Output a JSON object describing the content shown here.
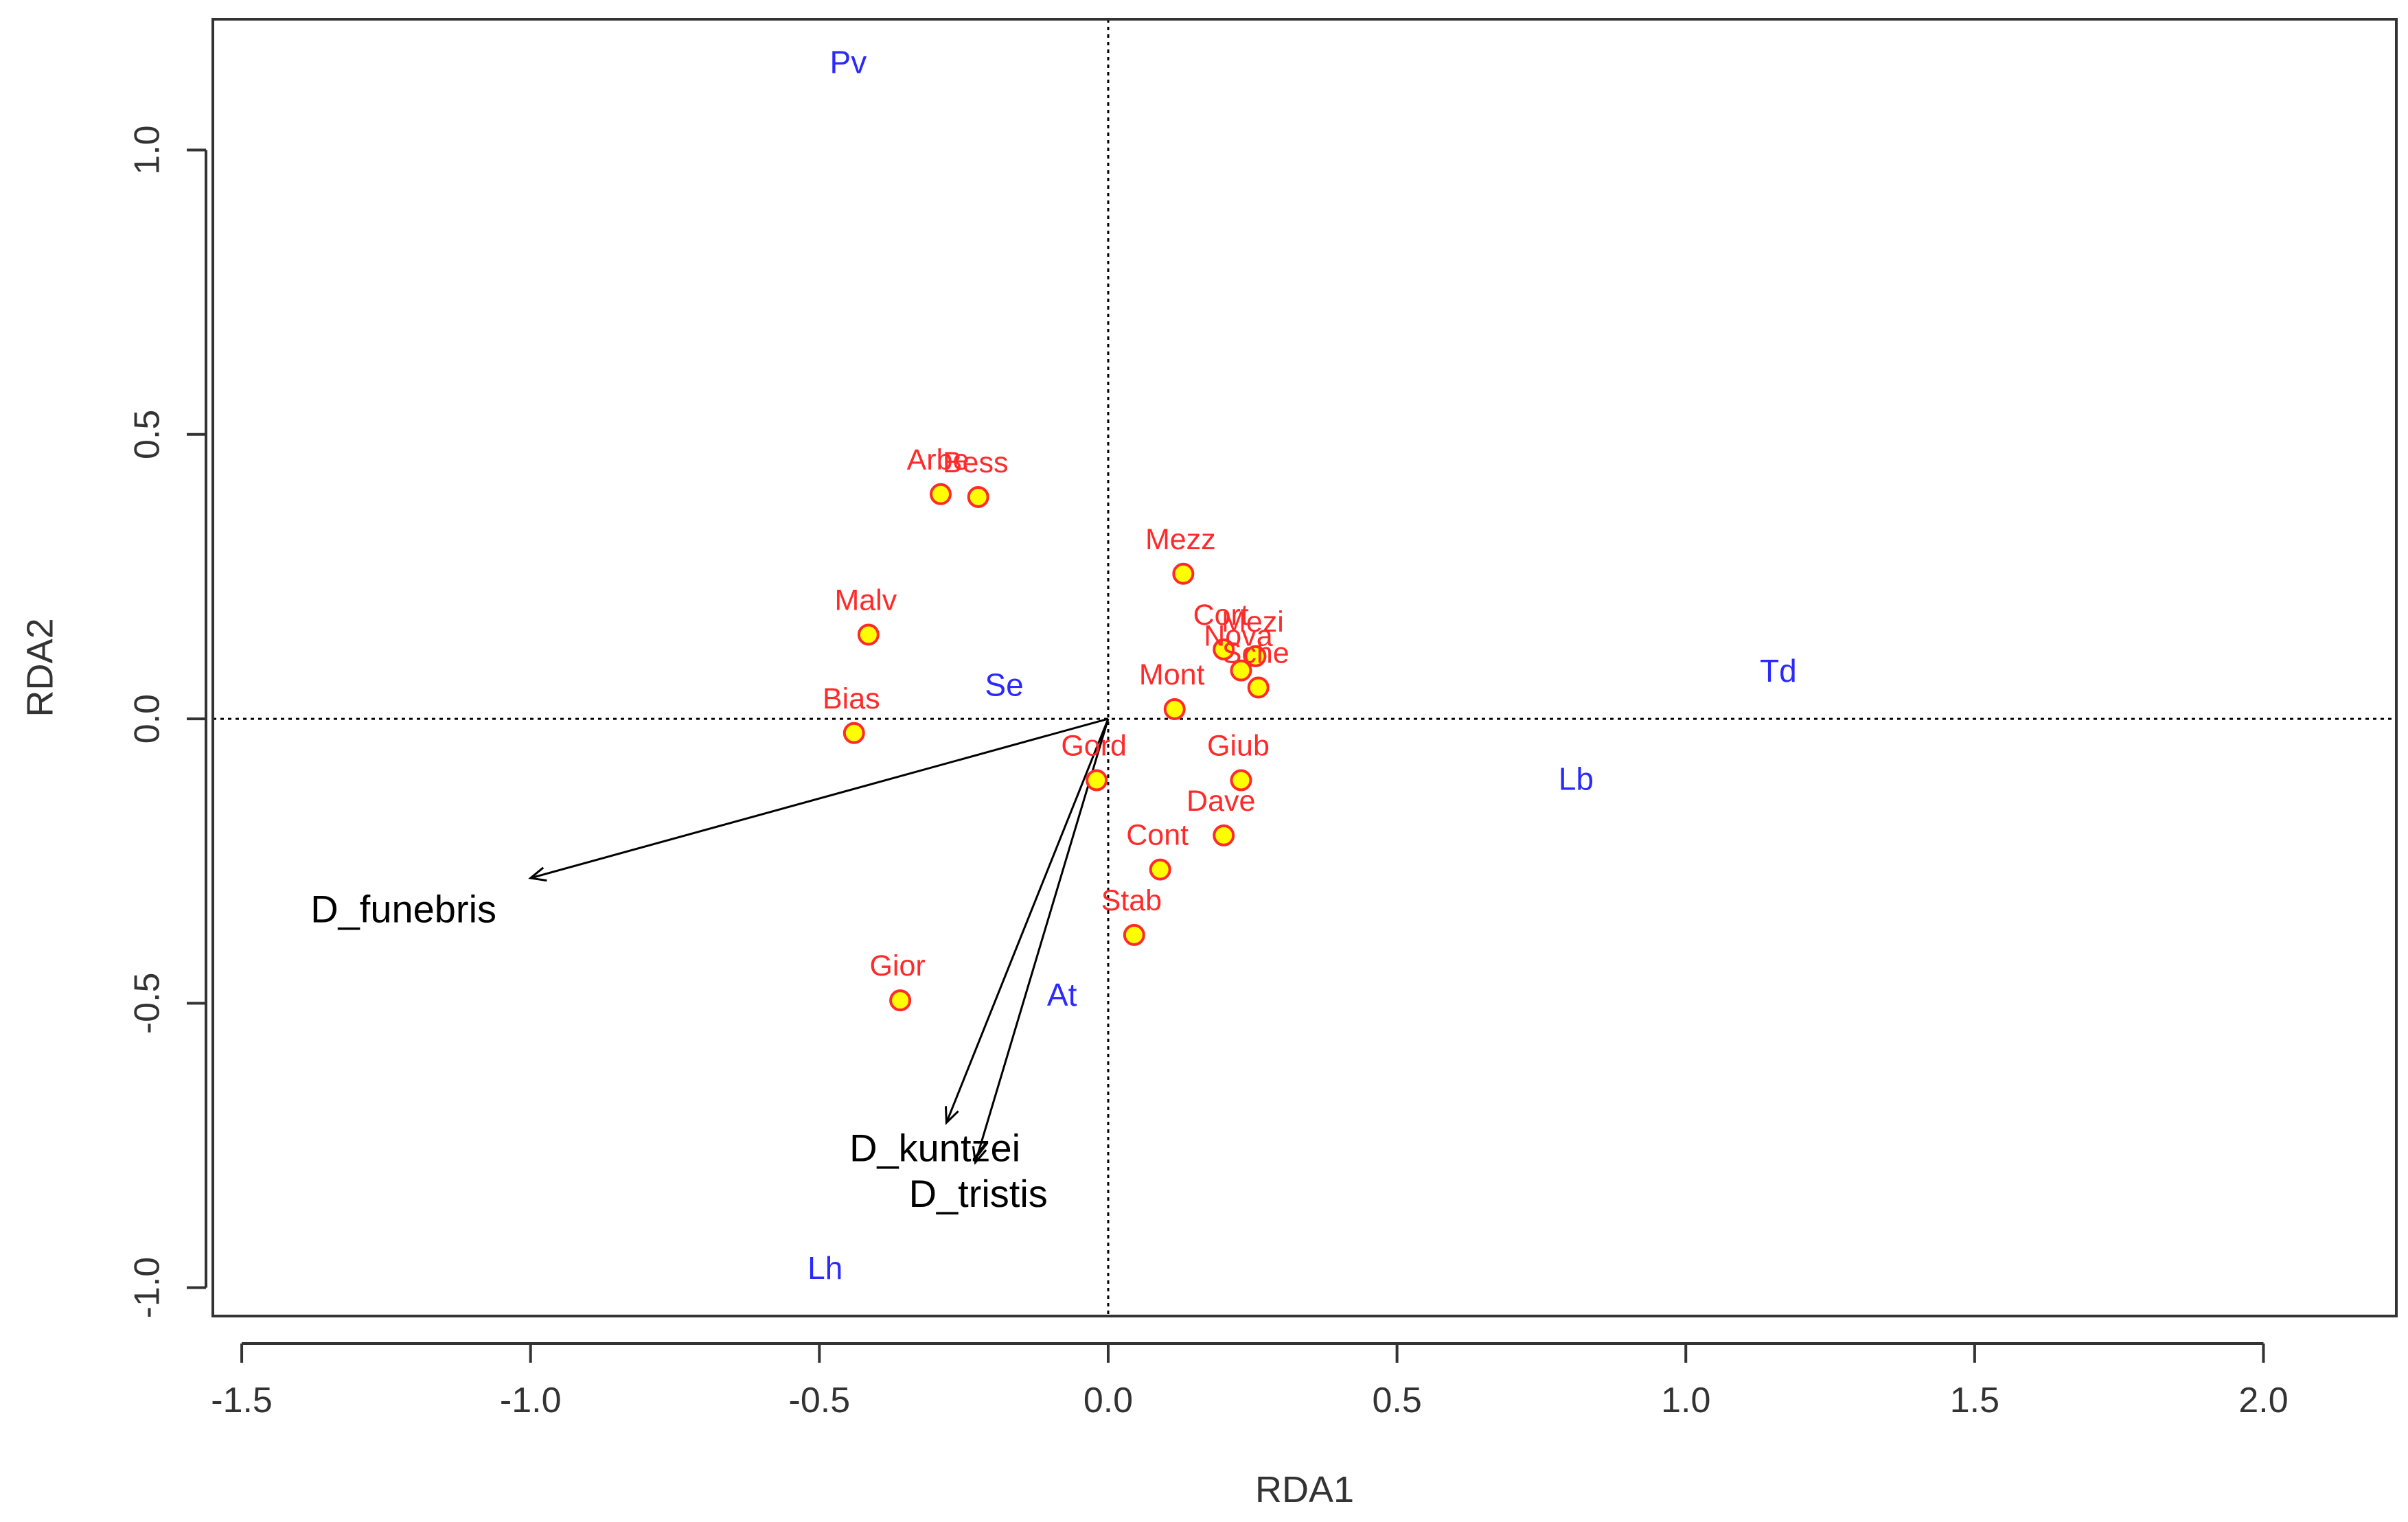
{
  "chart_data": {
    "type": "scatter",
    "title": "",
    "xlabel": "RDA1",
    "ylabel": "RDA2",
    "xlim": [
      -1.55,
      2.23
    ],
    "ylim": [
      -1.05,
      1.23
    ],
    "xticks": [
      -1.5,
      -1.0,
      -0.5,
      0.0,
      0.5,
      1.0,
      1.5,
      2.0
    ],
    "xtick_labels": [
      "-1.5",
      "-1.0",
      "-0.5",
      "0.0",
      "0.5",
      "1.0",
      "1.5",
      "2.0"
    ],
    "yticks": [
      -1.0,
      -0.5,
      0.0,
      0.5,
      1.0
    ],
    "ytick_labels": [
      "-1.0",
      "-0.5",
      "0.0",
      "0.5",
      "1.0"
    ],
    "reference_lines": {
      "x": 0,
      "y": 0
    },
    "colors": {
      "site_label": "#ff2a2a",
      "site_point_fill": "#ffff00",
      "site_point_stroke": "#ff2a2a",
      "env_label": "#2a2aff",
      "arrow": "#000000",
      "species_label": "#000000",
      "axis": "#333333"
    },
    "sites": [
      {
        "name": "Arbe",
        "x": -0.29,
        "y": 0.395
      },
      {
        "name": "Bess",
        "x": -0.225,
        "y": 0.39
      },
      {
        "name": "Mezz",
        "x": 0.13,
        "y": 0.255
      },
      {
        "name": "Malv",
        "x": -0.415,
        "y": 0.148
      },
      {
        "name": "Cort",
        "x": 0.2,
        "y": 0.122
      },
      {
        "name": "Mezi",
        "x": 0.255,
        "y": 0.11
      },
      {
        "name": "Nova",
        "x": 0.23,
        "y": 0.085
      },
      {
        "name": "Sche",
        "x": 0.26,
        "y": 0.055
      },
      {
        "name": "Mont",
        "x": 0.115,
        "y": 0.017
      },
      {
        "name": "Bias",
        "x": -0.44,
        "y": -0.025
      },
      {
        "name": "Giub",
        "x": 0.23,
        "y": -0.108
      },
      {
        "name": "Gord",
        "x": -0.02,
        "y": -0.108
      },
      {
        "name": "Dave",
        "x": 0.2,
        "y": -0.205
      },
      {
        "name": "Cont",
        "x": 0.09,
        "y": -0.265
      },
      {
        "name": "Stab",
        "x": 0.045,
        "y": -0.38
      },
      {
        "name": "Gior",
        "x": -0.36,
        "y": -0.495
      }
    ],
    "env_labels": [
      {
        "name": "Pv",
        "x": -0.45,
        "y": 1.15
      },
      {
        "name": "Se",
        "x": -0.18,
        "y": 0.055
      },
      {
        "name": "Td",
        "x": 1.16,
        "y": 0.08
      },
      {
        "name": "Lb",
        "x": 0.81,
        "y": -0.11
      },
      {
        "name": "At",
        "x": -0.08,
        "y": -0.49
      },
      {
        "name": "Lh",
        "x": -0.49,
        "y": -0.97
      }
    ],
    "species": [
      {
        "name": "D_funebris",
        "x": -1.0,
        "y": -0.28,
        "label_x": -1.22,
        "label_y": -0.34
      },
      {
        "name": "D_kuntzei",
        "x": -0.28,
        "y": -0.71,
        "label_x": -0.3,
        "label_y": -0.76
      },
      {
        "name": "D_tristis",
        "x": -0.23,
        "y": -0.78,
        "label_x": -0.225,
        "label_y": -0.84
      }
    ]
  }
}
